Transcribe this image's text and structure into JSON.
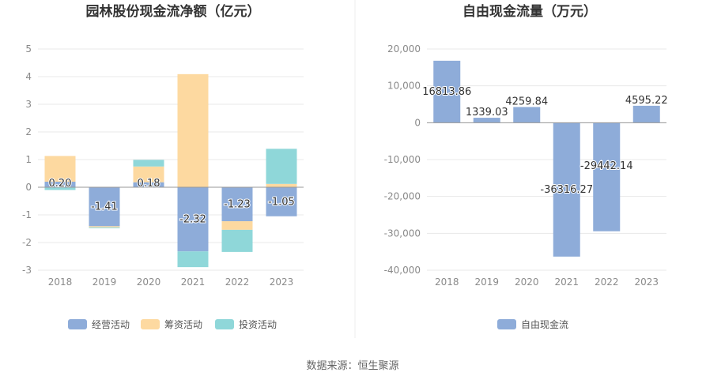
{
  "source_text": "数据来源：恒生聚源",
  "colors": {
    "operating": "#8eacd9",
    "financing": "#fdd9a0",
    "investing": "#8fd7d9",
    "fcf": "#8eacd9",
    "grid": "#e8e8e8",
    "axis_text": "#8a8a8a",
    "title": "#333333",
    "divider": "#eeeeee"
  },
  "chart_data": [
    {
      "type": "bar",
      "stacked": true,
      "title": "园林股份现金流净额（亿元）",
      "categories": [
        "2018",
        "2019",
        "2020",
        "2021",
        "2022",
        "2023"
      ],
      "ylim": [
        -3,
        5
      ],
      "yticks": [
        "5",
        "4",
        "3",
        "2",
        "1",
        "0",
        "-1",
        "-2",
        "-3"
      ],
      "grid": true,
      "legend_position": "bottom",
      "series": [
        {
          "name": "经营活动",
          "values": [
            0.2,
            -1.41,
            0.18,
            -2.32,
            -1.23,
            -1.05
          ],
          "labels": [
            "0.20",
            "-1.41",
            "0.18",
            "-2.32",
            "-1.23",
            "-1.05"
          ]
        },
        {
          "name": "筹资活动",
          "values": [
            0.93,
            -0.04,
            0.57,
            4.09,
            -0.31,
            0.12
          ]
        },
        {
          "name": "投资活动",
          "values": [
            -0.1,
            -0.03,
            0.24,
            -0.57,
            -0.8,
            1.27
          ]
        }
      ]
    },
    {
      "type": "bar",
      "title": "自由现金流量（万元）",
      "categories": [
        "2018",
        "2019",
        "2020",
        "2021",
        "2022",
        "2023"
      ],
      "ylim": [
        -40000,
        20000
      ],
      "yticks": [
        "20,000",
        "10,000",
        "0",
        "-10,000",
        "-20,000",
        "-30,000",
        "-40,000"
      ],
      "grid": true,
      "legend_position": "bottom",
      "series": [
        {
          "name": "自由现金流",
          "values": [
            16813.86,
            1339.03,
            4259.84,
            -36316.27,
            -29442.14,
            4595.22
          ],
          "labels": [
            "16813.86",
            "1339.03",
            "4259.84",
            "-36316.27",
            "-29442.14",
            "4595.22"
          ]
        }
      ]
    }
  ]
}
